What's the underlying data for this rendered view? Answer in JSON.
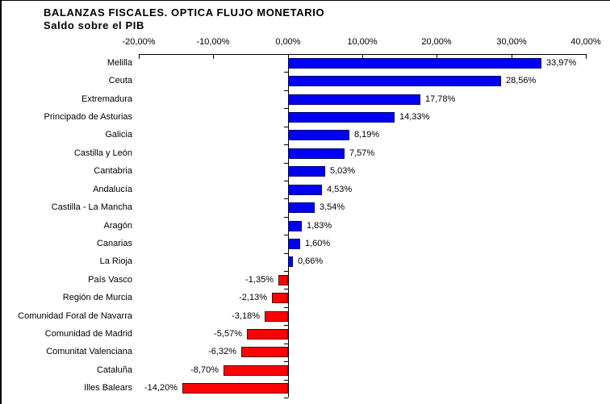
{
  "title": "BALANZAS FISCALES. OPTICA FLUJO MONETARIO",
  "subtitle": "Saldo sobre el PIB",
  "chart_data": {
    "type": "bar",
    "orientation": "horizontal",
    "title": "BALANZAS FISCALES. OPTICA FLUJO MONETARIO",
    "subtitle": "Saldo sobre el PIB",
    "x_axis": {
      "position": "top",
      "min": -20,
      "max": 40,
      "tick_step": 10,
      "tick_labels": [
        "-20,00%",
        "-10,00%",
        "0,00%",
        "10,00%",
        "20,00%",
        "30,00%",
        "40,00%"
      ]
    },
    "grid": "off",
    "legend": "none",
    "categories": [
      "Melilla",
      "Ceuta",
      "Extremadura",
      "Principado de Asturias",
      "Galicia",
      "Castilla y León",
      "Cantabria",
      "Andalucía",
      "Castilla - La Mancha",
      "Aragón",
      "Canarias",
      "La Rioja",
      "País Vasco",
      "Región de Murcia",
      "Comunidad Foral de Navarra",
      "Comunidad de Madrid",
      "Comunitat Valenciana",
      "Cataluña",
      "Illes Balears"
    ],
    "values": [
      33.97,
      28.56,
      17.78,
      14.33,
      8.19,
      7.57,
      5.03,
      4.53,
      3.54,
      1.83,
      1.6,
      0.66,
      -1.35,
      -2.13,
      -3.18,
      -5.57,
      -6.32,
      -8.7,
      -14.2
    ],
    "value_labels": [
      "33,97%",
      "28,56%",
      "17,78%",
      "14,33%",
      "8,19%",
      "7,57%",
      "5,03%",
      "4,53%",
      "3,54%",
      "1,83%",
      "1,60%",
      "0,66%",
      "-1,35%",
      "-2,13%",
      "-3,18%",
      "-5,57%",
      "-6,32%",
      "-8,70%",
      "-14,20%"
    ],
    "colors": {
      "positive_fill": "#0101f1",
      "positive_border": "#000070",
      "negative_fill": "#fc0204",
      "negative_border": "#5a0000",
      "axis": "#000000",
      "text": "#000000"
    }
  }
}
